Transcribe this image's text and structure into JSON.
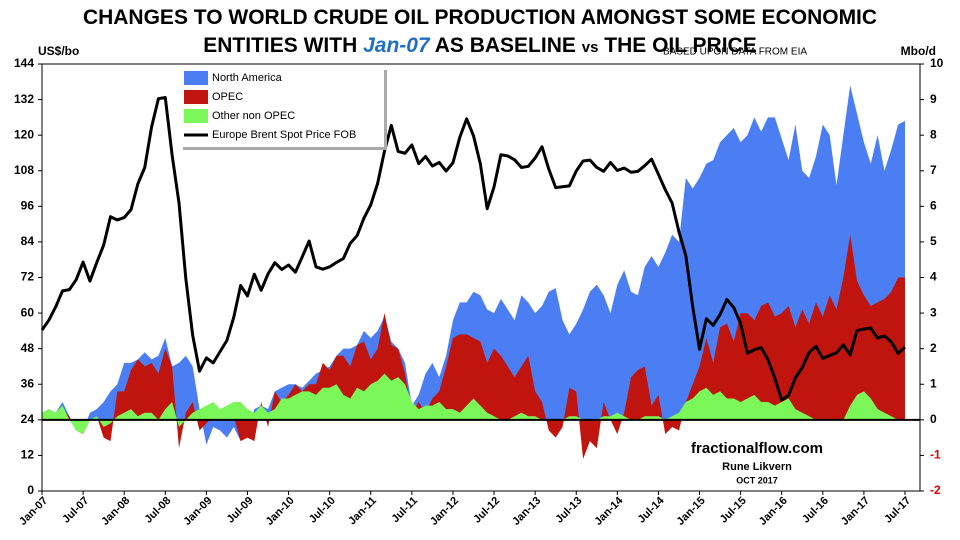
{
  "chart_data": {
    "type": "area",
    "title": {
      "line1": "CHANGES TO WORLD CRUDE OIL PRODUCTION AMONGST SOME ECONOMIC",
      "line2_start": "ENTITIES WITH",
      "baseline": "Jan-07",
      "line2_mid": "AS BASELINE",
      "vs": "vs",
      "line2_end": "THE OIL PRICE"
    },
    "subtitle": "BASED UPON DATA FROM EIA",
    "y_label": "US$/bo",
    "y2_label": "Mbo/d",
    "annotations": [
      "fractionalflow.com",
      "Rune Likvern",
      "OCT 2017"
    ],
    "legend": "upper left",
    "y2_negative_tick_color": "#e00000",
    "categories": [
      "Jan-07",
      null,
      null,
      null,
      null,
      null,
      "Jul-07",
      null,
      null,
      null,
      null,
      null,
      "Jan-08",
      null,
      null,
      null,
      null,
      null,
      "Jul-08",
      null,
      null,
      null,
      null,
      null,
      "Jan-09",
      null,
      null,
      null,
      null,
      null,
      "Jul-09",
      null,
      null,
      null,
      null,
      null,
      "Jan-10",
      null,
      null,
      null,
      null,
      null,
      "Jul-10",
      null,
      null,
      null,
      null,
      null,
      "Jan-11",
      null,
      null,
      null,
      null,
      null,
      "Jul-11",
      null,
      null,
      null,
      null,
      null,
      "Jan-12",
      null,
      null,
      null,
      null,
      null,
      "Jul-12",
      null,
      null,
      null,
      null,
      null,
      "Jan-13",
      null,
      null,
      null,
      null,
      null,
      "Jul-13",
      null,
      null,
      null,
      null,
      null,
      "Jan-14",
      null,
      null,
      null,
      null,
      null,
      "Jul-14",
      null,
      null,
      null,
      null,
      null,
      "Jan-15",
      null,
      null,
      null,
      null,
      null,
      "Jul-15",
      null,
      null,
      null,
      null,
      null,
      "Jan-16",
      null,
      null,
      null,
      null,
      null,
      "Jul-16",
      null,
      null,
      null,
      null,
      null,
      "Jan-17",
      null,
      null,
      null,
      null,
      null,
      "Jul-17"
    ],
    "series": [
      {
        "name": "North America",
        "color": "#4a7ef2",
        "axis": "y2",
        "values": [
          0.2,
          0.3,
          0.2,
          0.5,
          0.1,
          -0.3,
          -0.3,
          0.2,
          0.3,
          0.5,
          0.8,
          1.0,
          1.6,
          1.6,
          1.7,
          1.9,
          1.7,
          1.8,
          2.3,
          1.5,
          1.6,
          1.8,
          1.5,
          0.3,
          -0.7,
          -0.2,
          -0.3,
          -0.5,
          -0.2,
          -0.6,
          -0.3,
          0.3,
          0.4,
          0.3,
          0.8,
          0.9,
          1.0,
          1.0,
          0.9,
          1.1,
          1.3,
          1.4,
          1.5,
          1.8,
          2.0,
          2.0,
          2.1,
          2.5,
          2.3,
          2.5,
          2.9,
          2.2,
          2.0,
          1.6,
          0.4,
          0.7,
          1.3,
          1.6,
          1.2,
          1.8,
          2.8,
          3.3,
          3.3,
          3.6,
          3.5,
          3.1,
          3.0,
          3.4,
          3.1,
          2.8,
          3.5,
          3.3,
          3.0,
          3.2,
          3.6,
          3.7,
          2.8,
          2.4,
          2.7,
          3.1,
          3.6,
          3.8,
          3.5,
          3.0,
          3.8,
          4.2,
          3.6,
          3.5,
          4.3,
          4.6,
          4.3,
          4.7,
          5.2,
          5.0,
          6.8,
          6.5,
          6.8,
          7.2,
          7.3,
          7.8,
          8.0,
          8.2,
          7.8,
          8.0,
          8.5,
          8.1,
          8.5,
          8.5,
          7.9,
          7.3,
          8.3,
          7.0,
          6.8,
          7.4,
          8.3,
          8.0,
          6.6,
          8.0,
          9.4,
          8.6,
          7.8,
          7.2,
          8.0,
          7.0,
          7.6,
          8.3,
          8.4
        ]
      },
      {
        "name": "OPEC",
        "color": "#c0150e",
        "axis": "y2",
        "values": [
          0.1,
          0.2,
          0.1,
          0.3,
          0.1,
          -0.3,
          -0.4,
          0,
          0.1,
          -0.5,
          -0.6,
          0.8,
          0.8,
          1.4,
          1.7,
          1.5,
          1.6,
          1.3,
          2.0,
          1.5,
          -0.8,
          0.2,
          0.5,
          -0.3,
          -0.1,
          0.1,
          0.3,
          0.2,
          0.1,
          -0.6,
          -0.5,
          -0.6,
          0.5,
          -0.2,
          0.8,
          0.5,
          0.7,
          1.0,
          0.8,
          1.0,
          1.0,
          1.6,
          1.4,
          1.8,
          1.8,
          1.5,
          2.1,
          2.2,
          1.7,
          2.0,
          3.0,
          2.1,
          2.0,
          1.3,
          0.2,
          0.5,
          0.2,
          0.6,
          0.8,
          1.5,
          2.3,
          2.4,
          2.4,
          2.3,
          2.2,
          1.6,
          2.0,
          1.8,
          1.5,
          1.2,
          1.5,
          1.8,
          0.8,
          0.5,
          -0.3,
          -0.5,
          -0.2,
          0.9,
          0.8,
          -1.1,
          -0.6,
          -0.8,
          0.5,
          0,
          -0.4,
          0.2,
          1.2,
          1.4,
          1.5,
          0.4,
          0.7,
          -0.4,
          -0.2,
          -0.3,
          0.5,
          1.0,
          1.5,
          2.3,
          1.6,
          2.6,
          2.7,
          2.2,
          3.0,
          3.0,
          2.8,
          3.2,
          3.3,
          2.9,
          3.0,
          3.2,
          2.6,
          3.1,
          2.7,
          3.3,
          2.9,
          3.5,
          3.1,
          4.0,
          5.2,
          3.9,
          3.5,
          3.2,
          3.3,
          3.4,
          3.6,
          4.0,
          4.0
        ]
      },
      {
        "name": "Other non OPEC",
        "color": "#7cf75a",
        "axis": "y2",
        "values": [
          0.2,
          0.3,
          0.2,
          0.4,
          0,
          -0.3,
          -0.4,
          0,
          0.1,
          -0.2,
          -0.1,
          0.1,
          0.2,
          0.3,
          0.1,
          0.2,
          0.2,
          0,
          0.3,
          0.5,
          -0.2,
          0,
          0.2,
          0.3,
          0.4,
          0.5,
          0.3,
          0.4,
          0.5,
          0.5,
          0.3,
          0.2,
          0.4,
          0.2,
          0.3,
          0.6,
          0.6,
          0.7,
          0.8,
          0.8,
          0.7,
          0.9,
          0.9,
          1.0,
          0.7,
          0.6,
          0.9,
          0.8,
          1.0,
          1.1,
          1.3,
          1.1,
          1.2,
          1.0,
          0.5,
          0.3,
          0.4,
          0.4,
          0.5,
          0.3,
          0.3,
          0.2,
          0.4,
          0.6,
          0.4,
          0.2,
          0.1,
          0,
          0,
          0.1,
          0.2,
          0.1,
          0.1,
          0,
          0,
          0,
          0,
          0.1,
          0.1,
          0,
          0,
          0,
          0.1,
          0.1,
          0.2,
          0.1,
          0,
          0,
          0.1,
          0.1,
          0.1,
          0,
          0.1,
          0.2,
          0.5,
          0.6,
          0.8,
          0.9,
          0.7,
          0.8,
          0.6,
          0.6,
          0.5,
          0.6,
          0.7,
          0.5,
          0.5,
          0.4,
          0.5,
          0.6,
          0.3,
          0.2,
          0.1,
          0,
          0,
          0,
          0,
          0,
          0.4,
          0.7,
          0.8,
          0.6,
          0.3,
          0.2,
          0.1,
          0,
          0
        ]
      },
      {
        "name": "Europe Brent Spot Price FOB",
        "color": "#000000",
        "type": "line",
        "axis": "y",
        "values": [
          54.3,
          57.6,
          62.1,
          67.5,
          67.9,
          71.3,
          77.2,
          70.8,
          77.1,
          82.9,
          92.5,
          91.4,
          92.2,
          94.9,
          103.6,
          109.1,
          122.8,
          132.3,
          132.7,
          113.2,
          97.2,
          71.6,
          52.5,
          40.4,
          44.9,
          43.2,
          47.0,
          50.8,
          58.6,
          69.3,
          65.8,
          73.1,
          67.7,
          73.2,
          77.0,
          74.7,
          76.2,
          73.8,
          79.0,
          84.3,
          75.6,
          74.8,
          75.6,
          77.1,
          78.4,
          83.5,
          86.1,
          92.0,
          96.5,
          103.7,
          114.6,
          123.3,
          114.5,
          113.9,
          116.7,
          110.4,
          112.8,
          109.6,
          110.8,
          107.9,
          110.7,
          119.3,
          125.5,
          119.8,
          110.3,
          95.2,
          102.6,
          113.4,
          113.0,
          111.7,
          109.1,
          109.5,
          112.3,
          116.1,
          108.5,
          102.3,
          102.6,
          102.9,
          107.9,
          111.3,
          111.6,
          109.1,
          107.8,
          110.8,
          108.1,
          108.9,
          107.5,
          107.8,
          109.7,
          111.9,
          106.8,
          101.6,
          97.1,
          87.4,
          79.4,
          62.3,
          47.8,
          58.1,
          55.9,
          59.5,
          64.6,
          61.9,
          56.5,
          46.5,
          47.6,
          48.4,
          44.3,
          38.0,
          30.7,
          32.2,
          38.2,
          41.6,
          46.7,
          48.8,
          44.7,
          45.7,
          46.6,
          49.3,
          45.9,
          54.1,
          54.6,
          55.0,
          51.6,
          52.3,
          50.3,
          46.4,
          48.5
        ]
      }
    ],
    "ylim": [
      0,
      144
    ],
    "yticks": [
      0,
      12,
      24,
      36,
      48,
      60,
      72,
      84,
      96,
      108,
      120,
      132,
      144
    ],
    "y2lim": [
      -2,
      10
    ],
    "y2ticks": [
      -2,
      -1,
      0,
      1,
      2,
      3,
      4,
      5,
      6,
      7,
      8,
      9,
      10
    ]
  }
}
